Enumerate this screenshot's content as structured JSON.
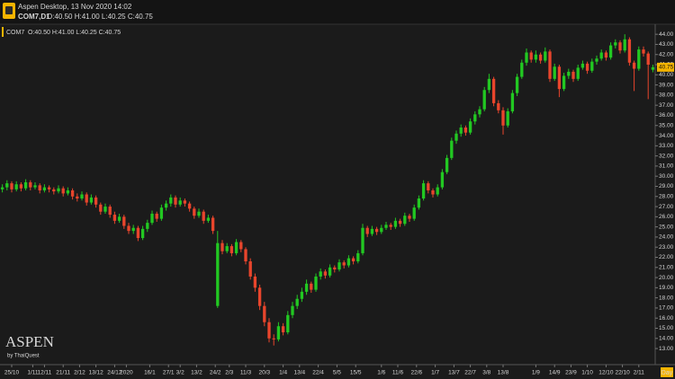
{
  "header": {
    "title": "Aspen Desktop, 13 Nov 2020 14:02",
    "symbol": "COM7,D1",
    "ohlc": "O:40.50 H:41.00 L:40.25 C:40.75"
  },
  "chart_data": {
    "type": "candlestick",
    "legend_symbol": "COM7",
    "legend_ohlc": "O:40.50 H:41.00 L:40.25 C:40.75",
    "watermark": "ASPEN",
    "watermark_sub": "by ThaiQuest",
    "timeframe": "Day",
    "up_color": "#22c822",
    "down_color": "#e8452c",
    "grid": false,
    "last_price": 40.75,
    "last_price_color": "#f4b400",
    "ylim": [
      11.5,
      44.9
    ],
    "xlim": [
      0,
      140
    ],
    "yticks": [
      {
        "value": 13,
        "label": "13.00"
      },
      {
        "value": 14,
        "label": "14.00"
      },
      {
        "value": 15,
        "label": "15.00"
      },
      {
        "value": 16,
        "label": "16.00"
      },
      {
        "value": 17,
        "label": "17.00"
      },
      {
        "value": 18,
        "label": "18.00"
      },
      {
        "value": 19,
        "label": "19.00"
      },
      {
        "value": 20,
        "label": "20.00"
      },
      {
        "value": 21,
        "label": "21.00"
      },
      {
        "value": 22,
        "label": "22.00"
      },
      {
        "value": 23,
        "label": "23.00"
      },
      {
        "value": 24,
        "label": "24.00"
      },
      {
        "value": 25,
        "label": "25.00"
      },
      {
        "value": 26,
        "label": "26.00"
      },
      {
        "value": 27,
        "label": "27.00"
      },
      {
        "value": 28,
        "label": "28.00"
      },
      {
        "value": 29,
        "label": "29.00"
      },
      {
        "value": 30,
        "label": "30.00"
      },
      {
        "value": 31,
        "label": "31.00"
      },
      {
        "value": 32,
        "label": "32.00"
      },
      {
        "value": 33,
        "label": "33.00"
      },
      {
        "value": 34,
        "label": "34.00"
      },
      {
        "value": 35,
        "label": "35.00"
      },
      {
        "value": 36,
        "label": "36.00"
      },
      {
        "value": 37,
        "label": "37.00"
      },
      {
        "value": 38,
        "label": "38.00"
      },
      {
        "value": 39,
        "label": "39.00"
      },
      {
        "value": 40,
        "label": "40.00"
      },
      {
        "value": 41,
        "label": "41.00"
      },
      {
        "value": 42,
        "label": "42.00"
      },
      {
        "value": 43,
        "label": "43.00"
      },
      {
        "value": 44,
        "label": "44.00"
      }
    ],
    "xticks": [
      {
        "value": 2.5,
        "label": "25/10"
      },
      {
        "value": 7,
        "label": "1/11"
      },
      {
        "value": 9.5,
        "label": "12/11"
      },
      {
        "value": 13.5,
        "label": "21/11"
      },
      {
        "value": 17,
        "label": "2/12"
      },
      {
        "value": 20.5,
        "label": "13/12"
      },
      {
        "value": 24.5,
        "label": "24/12"
      },
      {
        "value": 27,
        "label": "2020"
      },
      {
        "value": 32,
        "label": "16/1"
      },
      {
        "value": 36,
        "label": "27/1"
      },
      {
        "value": 38.5,
        "label": "3/2"
      },
      {
        "value": 42,
        "label": "13/2"
      },
      {
        "value": 46,
        "label": "24/2"
      },
      {
        "value": 49,
        "label": "2/3"
      },
      {
        "value": 52.5,
        "label": "11/3"
      },
      {
        "value": 56.5,
        "label": "20/3"
      },
      {
        "value": 60.5,
        "label": "1/4"
      },
      {
        "value": 64,
        "label": "13/4"
      },
      {
        "value": 68,
        "label": "22/4"
      },
      {
        "value": 72,
        "label": "5/5"
      },
      {
        "value": 76,
        "label": "15/5"
      },
      {
        "value": 81.5,
        "label": "1/6"
      },
      {
        "value": 85,
        "label": "11/6"
      },
      {
        "value": 89,
        "label": "22/6"
      },
      {
        "value": 93,
        "label": "1/7"
      },
      {
        "value": 97,
        "label": "13/7"
      },
      {
        "value": 100.5,
        "label": "22/7"
      },
      {
        "value": 104,
        "label": "3/8"
      },
      {
        "value": 107.5,
        "label": "13/8"
      },
      {
        "value": 114.5,
        "label": "1/9"
      },
      {
        "value": 118.5,
        "label": "14/9"
      },
      {
        "value": 122,
        "label": "23/9"
      },
      {
        "value": 125.5,
        "label": "1/10"
      },
      {
        "value": 129.5,
        "label": "12/10"
      },
      {
        "value": 133,
        "label": "22/10"
      },
      {
        "value": 136.5,
        "label": "2/11"
      }
    ],
    "candles": [
      [
        28.7,
        29.2,
        28.4,
        28.9
      ],
      [
        28.9,
        29.6,
        28.6,
        29.3
      ],
      [
        29.3,
        29.5,
        28.4,
        28.7
      ],
      [
        28.7,
        29.5,
        28.5,
        29.2
      ],
      [
        29.2,
        29.4,
        28.5,
        28.8
      ],
      [
        28.8,
        29.7,
        28.6,
        29.4
      ],
      [
        29.4,
        29.6,
        28.6,
        28.9
      ],
      [
        28.9,
        29.4,
        28.7,
        29.1
      ],
      [
        29.1,
        29.3,
        28.3,
        28.6
      ],
      [
        28.6,
        29.2,
        28.4,
        28.9
      ],
      [
        28.9,
        29.1,
        28.4,
        28.7
      ],
      [
        28.7,
        28.9,
        28.2,
        28.5
      ],
      [
        28.5,
        29.1,
        28.3,
        28.8
      ],
      [
        28.8,
        29.0,
        28.0,
        28.3
      ],
      [
        28.3,
        28.9,
        28.1,
        28.6
      ],
      [
        28.6,
        28.8,
        27.7,
        28.0
      ],
      [
        28.0,
        28.3,
        27.5,
        27.8
      ],
      [
        27.8,
        28.5,
        27.6,
        28.2
      ],
      [
        28.2,
        28.4,
        27.1,
        27.4
      ],
      [
        27.4,
        28.2,
        27.2,
        27.9
      ],
      [
        27.9,
        28.1,
        26.9,
        27.2
      ],
      [
        27.2,
        27.4,
        26.2,
        26.5
      ],
      [
        26.5,
        27.3,
        26.3,
        27.0
      ],
      [
        27.0,
        27.2,
        25.9,
        26.2
      ],
      [
        26.2,
        26.5,
        25.3,
        25.6
      ],
      [
        25.6,
        26.3,
        25.4,
        26.0
      ],
      [
        26.0,
        26.2,
        24.8,
        25.1
      ],
      [
        25.1,
        25.4,
        24.3,
        24.6
      ],
      [
        24.6,
        25.2,
        24.3,
        24.9
      ],
      [
        24.9,
        25.1,
        23.6,
        23.9
      ],
      [
        23.9,
        25.1,
        23.7,
        24.8
      ],
      [
        24.8,
        25.7,
        24.5,
        25.4
      ],
      [
        25.4,
        26.6,
        25.2,
        26.3
      ],
      [
        26.3,
        26.5,
        25.5,
        25.8
      ],
      [
        25.8,
        27.2,
        25.6,
        26.9
      ],
      [
        26.9,
        27.6,
        26.6,
        27.3
      ],
      [
        27.3,
        28.2,
        27.0,
        27.9
      ],
      [
        27.9,
        28.1,
        26.9,
        27.2
      ],
      [
        27.2,
        27.9,
        27.0,
        27.6
      ],
      [
        27.6,
        27.8,
        27.0,
        27.3
      ],
      [
        27.3,
        27.5,
        26.5,
        26.8
      ],
      [
        26.8,
        27.0,
        25.8,
        26.1
      ],
      [
        26.1,
        26.8,
        25.9,
        26.5
      ],
      [
        26.5,
        26.7,
        25.3,
        25.6
      ],
      [
        25.6,
        26.2,
        25.4,
        25.9
      ],
      [
        25.9,
        26.1,
        24.3,
        24.6
      ],
      [
        17.2,
        24.6,
        17.0,
        23.4
      ],
      [
        23.4,
        23.7,
        22.3,
        22.6
      ],
      [
        22.6,
        23.4,
        22.4,
        23.1
      ],
      [
        23.1,
        23.3,
        22.1,
        22.4
      ],
      [
        22.4,
        23.8,
        22.2,
        23.5
      ],
      [
        23.5,
        23.7,
        22.5,
        22.8
      ],
      [
        22.8,
        23.0,
        21.3,
        21.6
      ],
      [
        21.6,
        21.9,
        19.8,
        20.1
      ],
      [
        20.1,
        20.4,
        18.6,
        19.0
      ],
      [
        19.0,
        19.3,
        16.8,
        17.2
      ],
      [
        17.2,
        17.6,
        15.2,
        15.6
      ],
      [
        15.6,
        16.0,
        13.6,
        14.0
      ],
      [
        14.0,
        14.4,
        13.3,
        13.9
      ],
      [
        13.9,
        15.6,
        13.7,
        15.2
      ],
      [
        15.2,
        15.5,
        14.3,
        14.6
      ],
      [
        14.6,
        16.7,
        14.4,
        16.3
      ],
      [
        16.3,
        17.6,
        16.0,
        17.2
      ],
      [
        17.2,
        18.3,
        16.9,
        17.9
      ],
      [
        17.9,
        19.0,
        17.6,
        18.6
      ],
      [
        18.6,
        19.8,
        18.3,
        19.4
      ],
      [
        19.4,
        19.6,
        18.5,
        18.8
      ],
      [
        18.8,
        20.4,
        18.6,
        20.1
      ],
      [
        20.1,
        20.9,
        19.8,
        20.6
      ],
      [
        20.6,
        20.8,
        19.9,
        20.2
      ],
      [
        20.2,
        21.3,
        20.0,
        21.0
      ],
      [
        21.0,
        21.2,
        20.5,
        20.8
      ],
      [
        20.8,
        21.8,
        20.6,
        21.5
      ],
      [
        21.5,
        21.7,
        20.9,
        21.2
      ],
      [
        21.2,
        22.2,
        21.0,
        21.9
      ],
      [
        21.9,
        22.1,
        21.3,
        21.6
      ],
      [
        21.6,
        22.7,
        21.4,
        22.4
      ],
      [
        22.4,
        25.3,
        22.2,
        24.9
      ],
      [
        24.9,
        25.1,
        24.0,
        24.3
      ],
      [
        24.3,
        25.1,
        24.1,
        24.8
      ],
      [
        24.8,
        25.0,
        24.2,
        24.5
      ],
      [
        24.5,
        25.2,
        24.3,
        24.9
      ],
      [
        24.9,
        25.5,
        24.7,
        25.2
      ],
      [
        25.2,
        25.4,
        24.7,
        25.0
      ],
      [
        25.0,
        25.9,
        24.8,
        25.6
      ],
      [
        25.6,
        25.8,
        25.0,
        25.3
      ],
      [
        25.3,
        26.4,
        25.1,
        26.1
      ],
      [
        26.1,
        26.3,
        25.5,
        25.8
      ],
      [
        25.8,
        27.2,
        25.6,
        26.9
      ],
      [
        26.9,
        28.1,
        26.7,
        27.8
      ],
      [
        27.8,
        29.6,
        27.6,
        29.3
      ],
      [
        29.3,
        29.5,
        28.3,
        28.6
      ],
      [
        28.6,
        28.8,
        27.9,
        28.2
      ],
      [
        28.2,
        29.2,
        28.0,
        28.9
      ],
      [
        28.9,
        30.7,
        28.7,
        30.4
      ],
      [
        30.4,
        32.1,
        30.2,
        31.8
      ],
      [
        31.8,
        33.8,
        31.6,
        33.5
      ],
      [
        33.5,
        34.5,
        33.2,
        34.2
      ],
      [
        34.2,
        35.1,
        33.9,
        34.8
      ],
      [
        34.8,
        35.0,
        34.0,
        34.3
      ],
      [
        34.3,
        35.7,
        34.1,
        35.4
      ],
      [
        35.4,
        36.4,
        35.1,
        36.1
      ],
      [
        36.1,
        36.9,
        35.8,
        36.6
      ],
      [
        36.6,
        38.8,
        36.4,
        38.5
      ],
      [
        38.5,
        40.1,
        38.2,
        39.6
      ],
      [
        39.6,
        39.8,
        36.9,
        37.2
      ],
      [
        37.2,
        37.5,
        36.2,
        36.5
      ],
      [
        36.5,
        36.8,
        34.1,
        35.0
      ],
      [
        35.0,
        36.7,
        34.8,
        36.4
      ],
      [
        36.4,
        38.5,
        36.2,
        38.2
      ],
      [
        38.2,
        40.1,
        37.9,
        39.8
      ],
      [
        39.8,
        41.5,
        39.6,
        41.2
      ],
      [
        41.2,
        42.6,
        40.9,
        42.2
      ],
      [
        42.2,
        42.4,
        41.2,
        41.5
      ],
      [
        41.5,
        42.4,
        41.2,
        42.0
      ],
      [
        42.0,
        42.2,
        41.1,
        41.4
      ],
      [
        41.4,
        42.7,
        41.2,
        42.3
      ],
      [
        42.3,
        42.5,
        39.3,
        39.6
      ],
      [
        39.6,
        41.1,
        39.4,
        40.8
      ],
      [
        40.8,
        41.0,
        37.8,
        38.6
      ],
      [
        38.6,
        40.2,
        38.4,
        39.9
      ],
      [
        39.9,
        40.6,
        39.6,
        40.3
      ],
      [
        40.3,
        40.5,
        39.3,
        39.6
      ],
      [
        39.6,
        41.0,
        39.4,
        40.7
      ],
      [
        40.7,
        41.4,
        40.5,
        41.1
      ],
      [
        41.1,
        41.3,
        40.1,
        40.4
      ],
      [
        40.4,
        41.6,
        40.2,
        41.3
      ],
      [
        41.3,
        41.9,
        41.0,
        41.6
      ],
      [
        41.6,
        42.5,
        41.4,
        42.2
      ],
      [
        42.2,
        42.4,
        41.4,
        41.7
      ],
      [
        41.7,
        43.2,
        41.5,
        42.9
      ],
      [
        42.9,
        43.5,
        42.6,
        43.2
      ],
      [
        43.2,
        43.4,
        42.1,
        42.4
      ],
      [
        42.4,
        44.0,
        42.2,
        43.5
      ],
      [
        43.5,
        43.7,
        40.9,
        41.2
      ],
      [
        41.2,
        41.4,
        38.4,
        40.6
      ],
      [
        40.6,
        42.8,
        40.4,
        42.5
      ],
      [
        42.5,
        42.8,
        41.8,
        42.1
      ],
      [
        42.1,
        42.3,
        37.6,
        41.0
      ],
      [
        40.5,
        41.0,
        40.25,
        40.75
      ]
    ]
  }
}
